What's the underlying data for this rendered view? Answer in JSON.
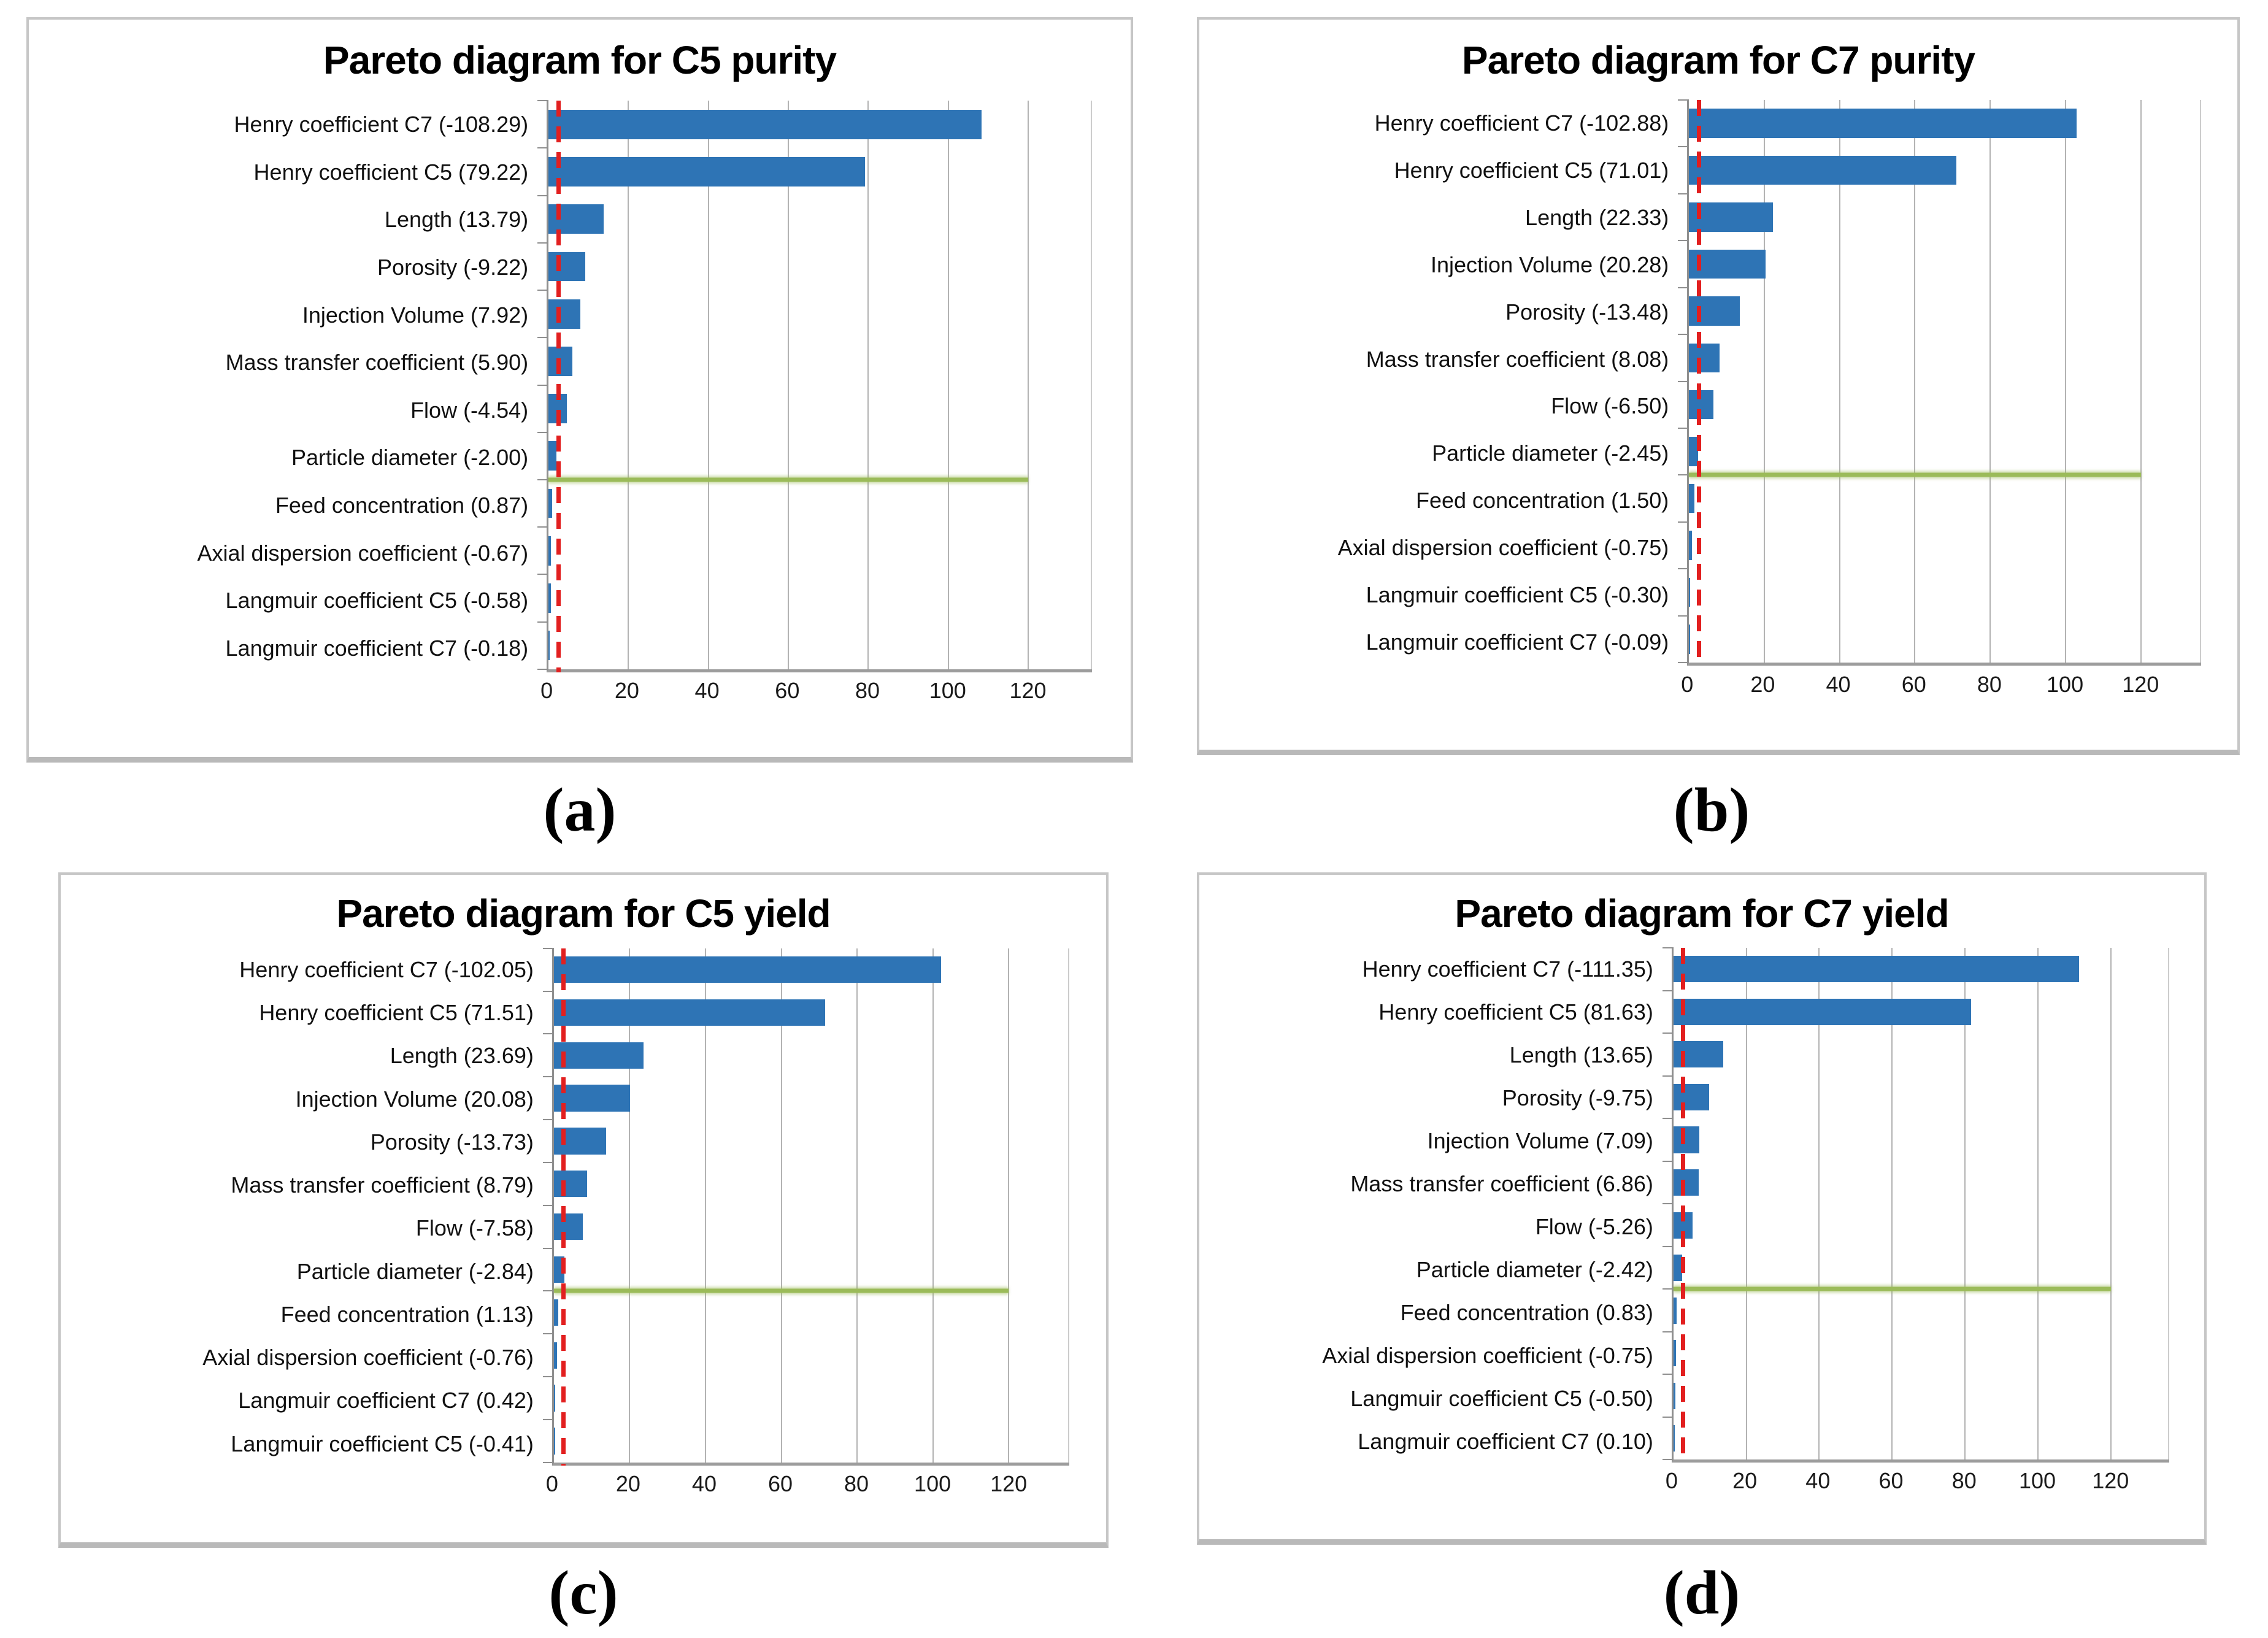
{
  "styles": {
    "bar_color": "#2e74b5",
    "threshold_color": "#e21f1f",
    "divider_color": "#9bbb59",
    "grid_color": "#b3b3b3",
    "axis_color": "#8f8f8f",
    "panel_border_color": "#c6c6c6"
  },
  "chart_data": [
    {
      "type": "bar",
      "orientation": "horizontal",
      "title": "Pareto diagram for C5 purity",
      "caption": "(a)",
      "categories": [
        "Henry coefficient C7 (-108.29)",
        "Henry coefficient C5 (79.22)",
        "Length (13.79)",
        "Porosity (-9.22)",
        "Injection Volume (7.92)",
        "Mass transfer coefficient (5.90)",
        "Flow (-4.54)",
        "Particle diameter (-2.00)",
        "Feed concentration (0.87)",
        "Axial dispersion coefficient (-0.67)",
        "Langmuir coefficient C5 (-0.58)",
        "Langmuir coefficient C7 (-0.18)"
      ],
      "signed_values": [
        -108.29,
        79.22,
        13.79,
        -9.22,
        7.92,
        5.9,
        -4.54,
        -2.0,
        0.87,
        -0.67,
        -0.58,
        -0.18
      ],
      "values": [
        108.29,
        79.22,
        13.79,
        9.22,
        7.92,
        5.9,
        4.54,
        2.0,
        0.87,
        0.67,
        0.58,
        0.18
      ],
      "xlabel": "",
      "ylabel": "",
      "x_ticks": [
        0,
        20,
        40,
        60,
        80,
        100,
        120
      ],
      "xlim": [
        0,
        120
      ],
      "grid": true,
      "threshold_x": 2.5,
      "divider_after_index": 8
    },
    {
      "type": "bar",
      "orientation": "horizontal",
      "title": "Pareto diagram for C7 purity",
      "caption": "(b)",
      "categories": [
        "Henry coefficient C7 (-102.88)",
        "Henry coefficient C5 (71.01)",
        "Length (22.33)",
        "Injection Volume (20.28)",
        "Porosity (-13.48)",
        "Mass transfer coefficient (8.08)",
        "Flow (-6.50)",
        "Particle diameter (-2.45)",
        "Feed concentration (1.50)",
        "Axial dispersion coefficient (-0.75)",
        "Langmuir coefficient C5 (-0.30)",
        "Langmuir coefficient C7 (-0.09)"
      ],
      "signed_values": [
        -102.88,
        71.01,
        22.33,
        20.28,
        -13.48,
        8.08,
        -6.5,
        -2.45,
        1.5,
        -0.75,
        -0.3,
        -0.09
      ],
      "values": [
        102.88,
        71.01,
        22.33,
        20.28,
        13.48,
        8.08,
        6.5,
        2.45,
        1.5,
        0.75,
        0.3,
        0.09
      ],
      "xlabel": "",
      "ylabel": "",
      "x_ticks": [
        0,
        20,
        40,
        60,
        80,
        100,
        120
      ],
      "xlim": [
        0,
        120
      ],
      "grid": true,
      "threshold_x": 2.5,
      "divider_after_index": 8
    },
    {
      "type": "bar",
      "orientation": "horizontal",
      "title": "Pareto diagram for C5 yield",
      "caption": "(c)",
      "categories": [
        "Henry coefficient C7 (-102.05)",
        "Henry coefficient C5 (71.51)",
        "Length (23.69)",
        "Injection Volume (20.08)",
        "Porosity (-13.73)",
        "Mass transfer coefficient (8.79)",
        "Flow (-7.58)",
        "Particle diameter (-2.84)",
        "Feed concentration (1.13)",
        "Axial dispersion coefficient (-0.76)",
        "Langmuir coefficient C7 (0.42)",
        "Langmuir coefficient C5 (-0.41)"
      ],
      "signed_values": [
        -102.05,
        71.51,
        23.69,
        20.08,
        -13.73,
        8.79,
        -7.58,
        -2.84,
        1.13,
        -0.76,
        0.42,
        -0.41
      ],
      "values": [
        102.05,
        71.51,
        23.69,
        20.08,
        13.73,
        8.79,
        7.58,
        2.84,
        1.13,
        0.76,
        0.42,
        0.41
      ],
      "xlabel": "",
      "ylabel": "",
      "x_ticks": [
        0,
        20,
        40,
        60,
        80,
        100,
        120
      ],
      "xlim": [
        0,
        120
      ],
      "grid": true,
      "threshold_x": 2.5,
      "divider_after_index": 8
    },
    {
      "type": "bar",
      "orientation": "horizontal",
      "title": "Pareto diagram for C7 yield",
      "caption": "(d)",
      "categories": [
        "Henry coefficient C7 (-111.35)",
        "Henry coefficient C5 (81.63)",
        "Length (13.65)",
        "Porosity (-9.75)",
        "Injection Volume (7.09)",
        "Mass transfer coefficient (6.86)",
        "Flow (-5.26)",
        "Particle diameter (-2.42)",
        "Feed concentration (0.83)",
        "Axial dispersion coefficient (-0.75)",
        "Langmuir coefficient C5 (-0.50)",
        "Langmuir coefficient C7 (0.10)"
      ],
      "signed_values": [
        -111.35,
        81.63,
        13.65,
        -9.75,
        7.09,
        6.86,
        -5.26,
        -2.42,
        0.83,
        -0.75,
        -0.5,
        0.1
      ],
      "values": [
        111.35,
        81.63,
        13.65,
        9.75,
        7.09,
        6.86,
        5.26,
        2.42,
        0.83,
        0.75,
        0.5,
        0.1
      ],
      "xlabel": "",
      "ylabel": "",
      "x_ticks": [
        0,
        20,
        40,
        60,
        80,
        100,
        120
      ],
      "xlim": [
        0,
        120
      ],
      "grid": true,
      "threshold_x": 2.5,
      "divider_after_index": 8
    }
  ]
}
